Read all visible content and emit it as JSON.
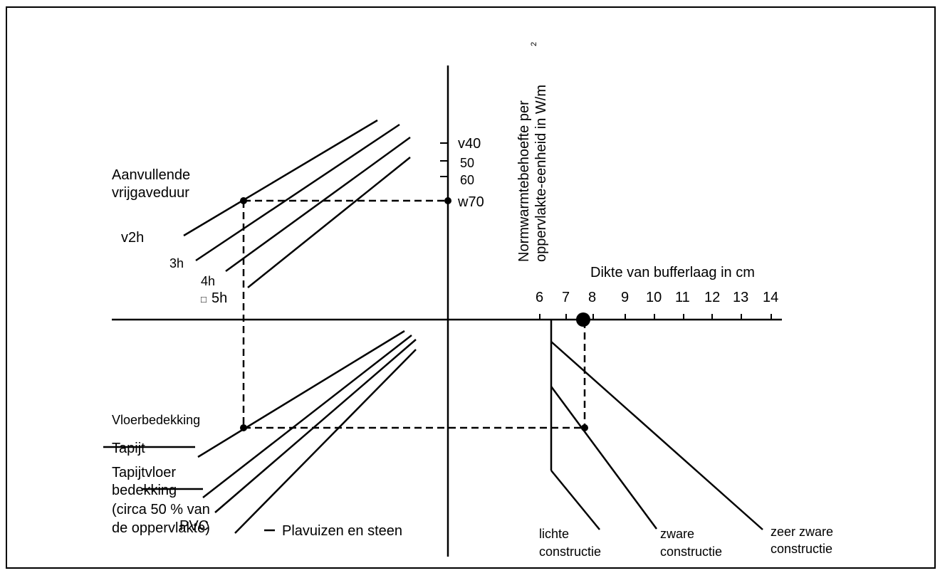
{
  "axes": {
    "vertical_title_line1": "Normwarmtebehoefte per",
    "vertical_title_line2": "oppervlakte-eenheid  in W/m",
    "vertical_title_sup": "2",
    "horizontal_title": "Dikte van bufferlaag in cm",
    "vertical_ticks": [
      "v40",
      "50",
      "60",
      "w70"
    ],
    "horizontal_ticks": [
      "6",
      "7",
      "8",
      "9",
      "10",
      "11",
      "12",
      "13",
      "14"
    ]
  },
  "upper_left": {
    "title_line1": "Aanvullende",
    "title_line2": "vrijgaveduur",
    "lines": [
      "v2h",
      "3h",
      "4h",
      "5h"
    ],
    "box_glyph": "□"
  },
  "lower_left": {
    "title": "Vloerbedekking",
    "tapijt": "Tapijt",
    "tapijtvloer_line1": "Tapijtvloer",
    "tapijtvloer_line2": "bedekking",
    "tapijtvloer_line3": "(circa 50 % van",
    "tapijtvloer_line4": "de oppervlakte)",
    "pvc": "PVC",
    "plavuizen": "Plavuizen en steen"
  },
  "lower_right": {
    "lichte_line1": "lichte",
    "lichte_line2": "constructie",
    "zware_line1": "zware",
    "zware_line2": "constructie",
    "zeer_line1": "zeer zware",
    "zeer_line2": "constructie"
  },
  "colors": {
    "line": "#000000",
    "background": "#ffffff"
  }
}
